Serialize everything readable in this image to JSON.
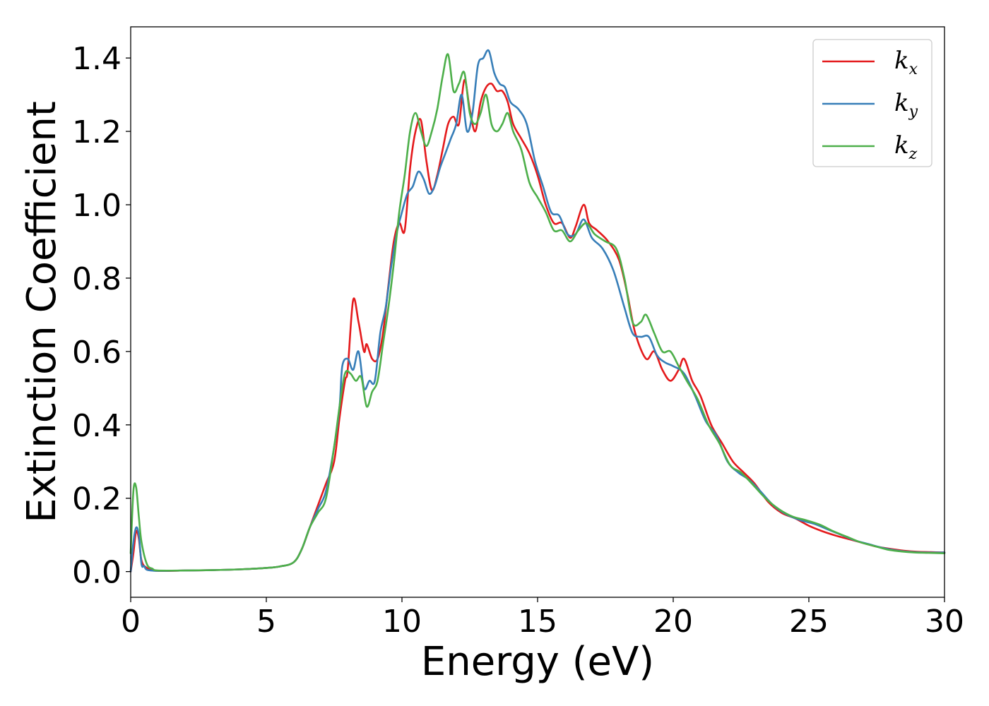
{
  "chart_data": {
    "type": "line",
    "xlabel": "Energy (eV)",
    "ylabel": "Extinction Coefficient",
    "xlim": [
      0,
      30
    ],
    "ylim": [
      -0.07,
      1.485
    ],
    "x_ticks": [
      "0",
      "5",
      "10",
      "15",
      "20",
      "25",
      "30"
    ],
    "y_ticks": [
      "0.0",
      "0.2",
      "0.4",
      "0.6",
      "0.8",
      "1.0",
      "1.2",
      "1.4"
    ],
    "grid": false,
    "legend_position": "top-right",
    "series": [
      {
        "name": "kx",
        "legend_main": "k",
        "legend_sub": "x",
        "color": "#e41a1c",
        "points": [
          [
            0,
            0.0
          ],
          [
            0.1,
            0.05
          ],
          [
            0.2,
            0.11
          ],
          [
            0.3,
            0.09
          ],
          [
            0.4,
            0.03
          ],
          [
            0.6,
            0.01
          ],
          [
            1,
            0.002
          ],
          [
            2,
            0.003
          ],
          [
            3,
            0.004
          ],
          [
            4,
            0.006
          ],
          [
            5,
            0.01
          ],
          [
            5.5,
            0.014
          ],
          [
            6,
            0.025
          ],
          [
            6.3,
            0.06
          ],
          [
            6.6,
            0.12
          ],
          [
            6.9,
            0.18
          ],
          [
            7.2,
            0.24
          ],
          [
            7.5,
            0.3
          ],
          [
            7.7,
            0.42
          ],
          [
            7.9,
            0.52
          ],
          [
            8.0,
            0.55
          ],
          [
            8.2,
            0.74
          ],
          [
            8.4,
            0.68
          ],
          [
            8.6,
            0.6
          ],
          [
            8.7,
            0.62
          ],
          [
            8.9,
            0.58
          ],
          [
            9.1,
            0.58
          ],
          [
            9.3,
            0.65
          ],
          [
            9.5,
            0.78
          ],
          [
            9.7,
            0.9
          ],
          [
            9.9,
            0.95
          ],
          [
            10.1,
            0.93
          ],
          [
            10.3,
            1.1
          ],
          [
            10.5,
            1.2
          ],
          [
            10.7,
            1.23
          ],
          [
            10.9,
            1.12
          ],
          [
            11.1,
            1.04
          ],
          [
            11.3,
            1.08
          ],
          [
            11.5,
            1.15
          ],
          [
            11.7,
            1.22
          ],
          [
            11.9,
            1.24
          ],
          [
            12.1,
            1.22
          ],
          [
            12.3,
            1.34
          ],
          [
            12.5,
            1.26
          ],
          [
            12.7,
            1.2
          ],
          [
            12.9,
            1.28
          ],
          [
            13.1,
            1.32
          ],
          [
            13.3,
            1.33
          ],
          [
            13.5,
            1.31
          ],
          [
            13.7,
            1.31
          ],
          [
            13.9,
            1.28
          ],
          [
            14.1,
            1.22
          ],
          [
            14.4,
            1.18
          ],
          [
            14.7,
            1.14
          ],
          [
            15.0,
            1.08
          ],
          [
            15.3,
            1.0
          ],
          [
            15.6,
            0.95
          ],
          [
            15.9,
            0.95
          ],
          [
            16.2,
            0.91
          ],
          [
            16.4,
            0.94
          ],
          [
            16.7,
            1.0
          ],
          [
            16.9,
            0.95
          ],
          [
            17.2,
            0.93
          ],
          [
            17.6,
            0.9
          ],
          [
            18.0,
            0.85
          ],
          [
            18.3,
            0.76
          ],
          [
            18.6,
            0.65
          ],
          [
            19.0,
            0.58
          ],
          [
            19.3,
            0.6
          ],
          [
            19.6,
            0.55
          ],
          [
            19.9,
            0.52
          ],
          [
            20.2,
            0.55
          ],
          [
            20.4,
            0.58
          ],
          [
            20.7,
            0.52
          ],
          [
            21.0,
            0.48
          ],
          [
            21.4,
            0.4
          ],
          [
            21.8,
            0.35
          ],
          [
            22.2,
            0.3
          ],
          [
            22.6,
            0.27
          ],
          [
            23.0,
            0.24
          ],
          [
            23.5,
            0.19
          ],
          [
            24.0,
            0.16
          ],
          [
            24.5,
            0.145
          ],
          [
            25.0,
            0.125
          ],
          [
            25.5,
            0.11
          ],
          [
            26.0,
            0.098
          ],
          [
            26.5,
            0.088
          ],
          [
            27.0,
            0.078
          ],
          [
            27.5,
            0.068
          ],
          [
            28.0,
            0.062
          ],
          [
            28.5,
            0.057
          ],
          [
            29.0,
            0.054
          ],
          [
            29.5,
            0.053
          ],
          [
            30.0,
            0.052
          ]
        ]
      },
      {
        "name": "ky",
        "legend_main": "k",
        "legend_sub": "y",
        "color": "#377eb8",
        "points": [
          [
            0,
            0.0
          ],
          [
            0.1,
            0.08
          ],
          [
            0.2,
            0.12
          ],
          [
            0.3,
            0.1
          ],
          [
            0.4,
            0.02
          ],
          [
            0.5,
            0.015
          ],
          [
            0.6,
            0.005
          ],
          [
            1,
            0.002
          ],
          [
            2,
            0.003
          ],
          [
            3,
            0.004
          ],
          [
            4,
            0.006
          ],
          [
            5,
            0.01
          ],
          [
            5.5,
            0.014
          ],
          [
            6,
            0.025
          ],
          [
            6.3,
            0.06
          ],
          [
            6.6,
            0.12
          ],
          [
            6.9,
            0.17
          ],
          [
            7.2,
            0.22
          ],
          [
            7.5,
            0.34
          ],
          [
            7.7,
            0.45
          ],
          [
            7.8,
            0.56
          ],
          [
            8.0,
            0.58
          ],
          [
            8.2,
            0.55
          ],
          [
            8.4,
            0.6
          ],
          [
            8.6,
            0.5
          ],
          [
            8.8,
            0.52
          ],
          [
            9.0,
            0.52
          ],
          [
            9.2,
            0.65
          ],
          [
            9.4,
            0.72
          ],
          [
            9.6,
            0.83
          ],
          [
            9.8,
            0.92
          ],
          [
            10.0,
            0.98
          ],
          [
            10.2,
            1.03
          ],
          [
            10.4,
            1.05
          ],
          [
            10.6,
            1.09
          ],
          [
            10.8,
            1.07
          ],
          [
            11.0,
            1.03
          ],
          [
            11.2,
            1.05
          ],
          [
            11.4,
            1.1
          ],
          [
            11.6,
            1.14
          ],
          [
            11.8,
            1.18
          ],
          [
            12.0,
            1.22
          ],
          [
            12.2,
            1.3
          ],
          [
            12.4,
            1.2
          ],
          [
            12.6,
            1.25
          ],
          [
            12.8,
            1.38
          ],
          [
            13.0,
            1.4
          ],
          [
            13.2,
            1.42
          ],
          [
            13.4,
            1.36
          ],
          [
            13.6,
            1.33
          ],
          [
            13.8,
            1.32
          ],
          [
            14.0,
            1.28
          ],
          [
            14.3,
            1.26
          ],
          [
            14.6,
            1.22
          ],
          [
            14.9,
            1.12
          ],
          [
            15.2,
            1.05
          ],
          [
            15.5,
            0.98
          ],
          [
            15.8,
            0.97
          ],
          [
            16.1,
            0.92
          ],
          [
            16.4,
            0.92
          ],
          [
            16.7,
            0.96
          ],
          [
            17.0,
            0.91
          ],
          [
            17.4,
            0.88
          ],
          [
            17.8,
            0.82
          ],
          [
            18.2,
            0.72
          ],
          [
            18.5,
            0.65
          ],
          [
            18.8,
            0.64
          ],
          [
            19.1,
            0.64
          ],
          [
            19.4,
            0.59
          ],
          [
            19.7,
            0.57
          ],
          [
            20.0,
            0.56
          ],
          [
            20.4,
            0.54
          ],
          [
            20.8,
            0.48
          ],
          [
            21.2,
            0.41
          ],
          [
            21.6,
            0.37
          ],
          [
            22.0,
            0.3
          ],
          [
            22.4,
            0.27
          ],
          [
            22.8,
            0.25
          ],
          [
            23.2,
            0.22
          ],
          [
            23.7,
            0.18
          ],
          [
            24.2,
            0.155
          ],
          [
            24.7,
            0.14
          ],
          [
            25.2,
            0.13
          ],
          [
            25.7,
            0.115
          ],
          [
            26.2,
            0.1
          ],
          [
            26.7,
            0.085
          ],
          [
            27.2,
            0.075
          ],
          [
            27.7,
            0.065
          ],
          [
            28.2,
            0.058
          ],
          [
            28.7,
            0.054
          ],
          [
            29.2,
            0.052
          ],
          [
            30.0,
            0.052
          ]
        ]
      },
      {
        "name": "kz",
        "legend_main": "k",
        "legend_sub": "z",
        "color": "#4daf4a",
        "points": [
          [
            0,
            0.05
          ],
          [
            0.1,
            0.22
          ],
          [
            0.2,
            0.23
          ],
          [
            0.3,
            0.15
          ],
          [
            0.4,
            0.08
          ],
          [
            0.6,
            0.02
          ],
          [
            0.8,
            0.008
          ],
          [
            1,
            0.003
          ],
          [
            2,
            0.003
          ],
          [
            3,
            0.004
          ],
          [
            4,
            0.006
          ],
          [
            5,
            0.01
          ],
          [
            5.5,
            0.014
          ],
          [
            6,
            0.025
          ],
          [
            6.3,
            0.06
          ],
          [
            6.6,
            0.12
          ],
          [
            6.9,
            0.16
          ],
          [
            7.2,
            0.2
          ],
          [
            7.5,
            0.34
          ],
          [
            7.7,
            0.45
          ],
          [
            7.9,
            0.54
          ],
          [
            8.1,
            0.54
          ],
          [
            8.3,
            0.52
          ],
          [
            8.5,
            0.53
          ],
          [
            8.7,
            0.45
          ],
          [
            8.9,
            0.49
          ],
          [
            9.1,
            0.52
          ],
          [
            9.3,
            0.62
          ],
          [
            9.5,
            0.72
          ],
          [
            9.7,
            0.84
          ],
          [
            9.9,
            0.98
          ],
          [
            10.1,
            1.08
          ],
          [
            10.3,
            1.2
          ],
          [
            10.5,
            1.25
          ],
          [
            10.7,
            1.2
          ],
          [
            10.9,
            1.16
          ],
          [
            11.1,
            1.2
          ],
          [
            11.3,
            1.26
          ],
          [
            11.5,
            1.35
          ],
          [
            11.7,
            1.41
          ],
          [
            11.9,
            1.31
          ],
          [
            12.1,
            1.33
          ],
          [
            12.3,
            1.36
          ],
          [
            12.5,
            1.25
          ],
          [
            12.7,
            1.22
          ],
          [
            12.9,
            1.25
          ],
          [
            13.1,
            1.3
          ],
          [
            13.3,
            1.22
          ],
          [
            13.5,
            1.2
          ],
          [
            13.7,
            1.22
          ],
          [
            13.9,
            1.25
          ],
          [
            14.1,
            1.2
          ],
          [
            14.4,
            1.15
          ],
          [
            14.7,
            1.06
          ],
          [
            15.0,
            1.02
          ],
          [
            15.3,
            0.98
          ],
          [
            15.6,
            0.93
          ],
          [
            15.9,
            0.93
          ],
          [
            16.2,
            0.9
          ],
          [
            16.5,
            0.93
          ],
          [
            16.8,
            0.95
          ],
          [
            17.1,
            0.92
          ],
          [
            17.5,
            0.9
          ],
          [
            17.9,
            0.88
          ],
          [
            18.2,
            0.8
          ],
          [
            18.5,
            0.68
          ],
          [
            18.8,
            0.68
          ],
          [
            19.0,
            0.7
          ],
          [
            19.3,
            0.65
          ],
          [
            19.6,
            0.6
          ],
          [
            19.9,
            0.6
          ],
          [
            20.2,
            0.56
          ],
          [
            20.5,
            0.52
          ],
          [
            20.9,
            0.47
          ],
          [
            21.3,
            0.4
          ],
          [
            21.7,
            0.35
          ],
          [
            22.1,
            0.29
          ],
          [
            22.5,
            0.27
          ],
          [
            22.9,
            0.24
          ],
          [
            23.4,
            0.2
          ],
          [
            23.9,
            0.17
          ],
          [
            24.4,
            0.15
          ],
          [
            24.9,
            0.14
          ],
          [
            25.4,
            0.128
          ],
          [
            25.9,
            0.11
          ],
          [
            26.4,
            0.095
          ],
          [
            26.9,
            0.08
          ],
          [
            27.4,
            0.07
          ],
          [
            27.9,
            0.06
          ],
          [
            28.4,
            0.055
          ],
          [
            28.9,
            0.052
          ],
          [
            29.4,
            0.051
          ],
          [
            30.0,
            0.05
          ]
        ]
      }
    ]
  }
}
